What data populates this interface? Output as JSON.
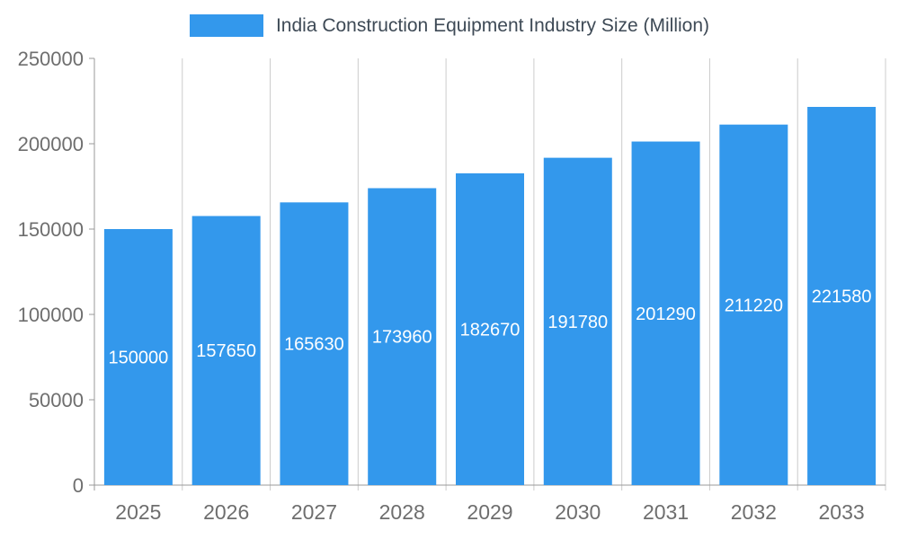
{
  "chart_data": {
    "type": "bar",
    "title": "India Construction Equipment Industry Size (Million)",
    "categories": [
      "2025",
      "2026",
      "2027",
      "2028",
      "2029",
      "2030",
      "2031",
      "2032",
      "2033"
    ],
    "values": [
      150000,
      157650,
      165630,
      173960,
      182670,
      191780,
      201290,
      211220,
      221580
    ],
    "value_labels": [
      "150000",
      "157650",
      "165630",
      "173960",
      "182670",
      "191780",
      "201290",
      "211220",
      "221580"
    ],
    "xlabel": "",
    "ylabel": "",
    "ylim": [
      0,
      250000
    ],
    "yticks": [
      0,
      50000,
      100000,
      150000,
      200000,
      250000
    ],
    "ytick_labels": [
      "0",
      "50000",
      "100000",
      "150000",
      "200000",
      "250000"
    ],
    "legend_position": "top-center",
    "grid": "vertical-only",
    "bar_color": "#3398EC",
    "value_label_color": "#FFFFFF"
  },
  "colors": {
    "bar": "#3398EC",
    "title_text": "#3E4A56",
    "axis_text": "#6E6E6E",
    "grid_line": "#CCCCCC",
    "axis_line": "#999999",
    "background": "#FFFFFF"
  }
}
